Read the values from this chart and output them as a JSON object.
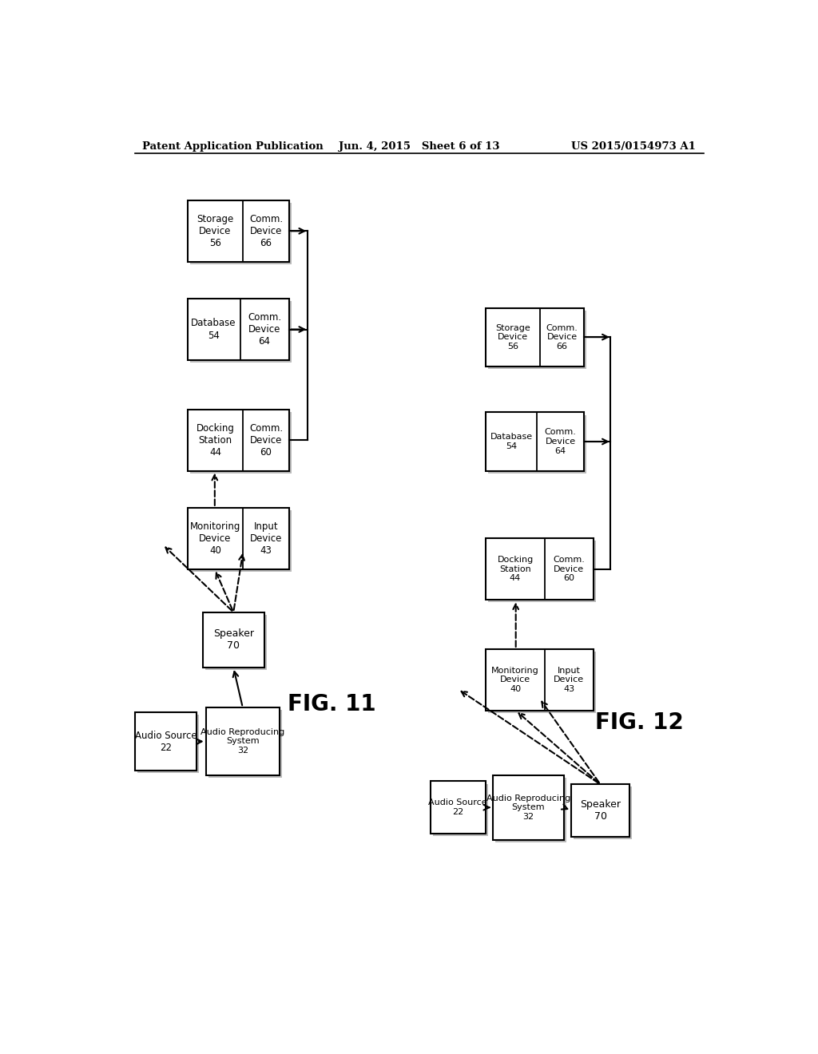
{
  "header_left": "Patent Application Publication",
  "header_center": "Jun. 4, 2015   Sheet 6 of 13",
  "header_right": "US 2015/0154973 A1",
  "fig11_label": "FIG. 11",
  "fig12_label": "FIG. 12",
  "background": "#ffffff"
}
